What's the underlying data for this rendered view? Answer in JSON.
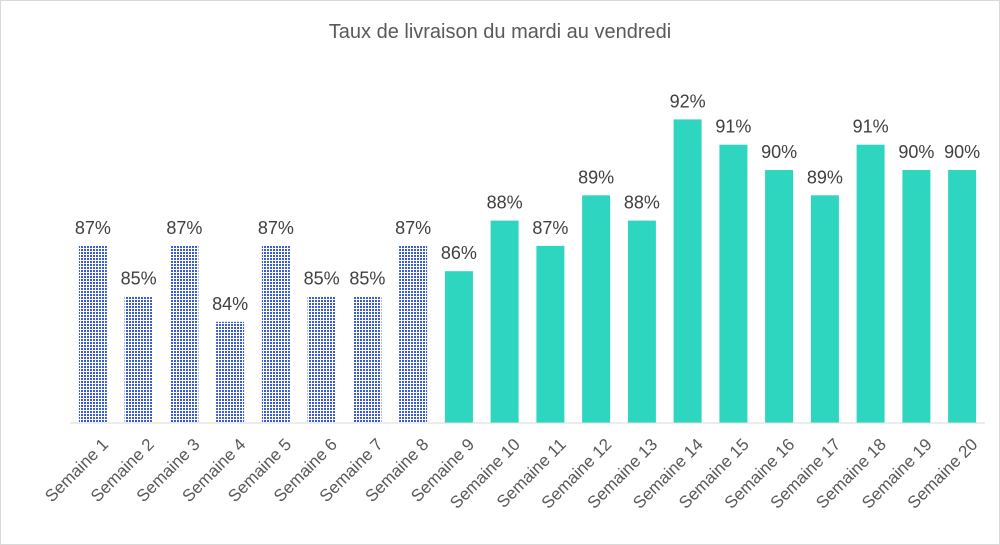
{
  "chart_data": {
    "type": "bar",
    "title": "Taux de livraison du mardi au vendredi",
    "xlabel": "",
    "ylabel": "",
    "categories": [
      "Semaine 1",
      "Semaine 2",
      "Semaine 3",
      "Semaine 4",
      "Semaine 5",
      "Semaine 6",
      "Semaine 7",
      "Semaine 8",
      "Semaine 9",
      "Semaine 10",
      "Semaine 11",
      "Semaine 12",
      "Semaine 13",
      "Semaine 14",
      "Semaine 15",
      "Semaine 16",
      "Semaine 17",
      "Semaine 18",
      "Semaine 19",
      "Semaine 20"
    ],
    "values": [
      87,
      85,
      87,
      84,
      87,
      85,
      85,
      87,
      86,
      88,
      87,
      89,
      88,
      92,
      91,
      90,
      89,
      91,
      90,
      90
    ],
    "data_labels": [
      "87%",
      "85%",
      "87%",
      "84%",
      "87%",
      "85%",
      "85%",
      "87%",
      "86%",
      "88%",
      "87%",
      "89%",
      "88%",
      "92%",
      "91%",
      "90%",
      "89%",
      "91%",
      "90%",
      "90%"
    ],
    "unit": "%",
    "ylim": [
      80,
      93
    ],
    "grid": false,
    "legend": "none",
    "bar_styles": {
      "pattern_bars": [
        1,
        2,
        3,
        4,
        5,
        6,
        7,
        8
      ],
      "pattern_color": "#3b5bdb",
      "solid_color": "#2ed6c0"
    }
  }
}
